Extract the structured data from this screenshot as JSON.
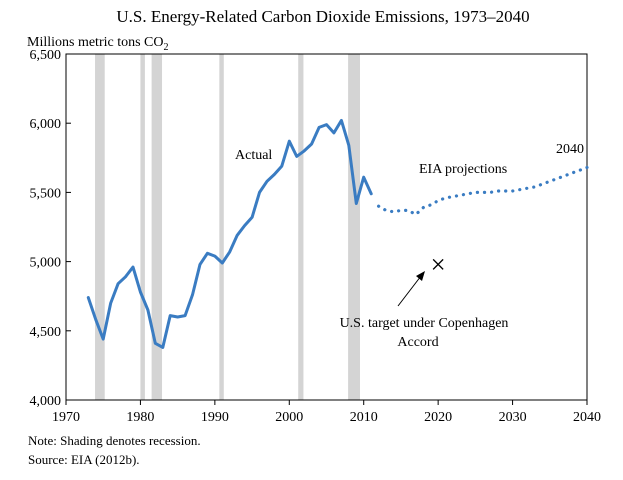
{
  "chart_data": {
    "type": "line",
    "title": "U.S. Energy-Related Carbon Dioxide Emissions, 1973–2040",
    "ylabel": "Millions metric tons CO",
    "ylabel_subscript": "2",
    "xlim": [
      1970,
      2040
    ],
    "ylim": [
      4000,
      6500
    ],
    "x_ticks": [
      1970,
      1980,
      1990,
      2000,
      2010,
      2020,
      2030,
      2040
    ],
    "y_ticks": [
      4000,
      4500,
      5000,
      5500,
      6000,
      6500
    ],
    "x_tick_labels": [
      "1970",
      "1980",
      "1990",
      "2000",
      "2010",
      "2020",
      "2030",
      "2040"
    ],
    "y_tick_labels": [
      "4,000",
      "4,500",
      "5,000",
      "5,500",
      "6,000",
      "6,500"
    ],
    "grid": false,
    "line_color": "#3a7cc2",
    "shade_color": "#d4d4d4",
    "recessions": [
      [
        1973.9,
        1975.2
      ],
      [
        1980.0,
        1980.6
      ],
      [
        1981.5,
        1982.9
      ],
      [
        1990.6,
        1991.2
      ],
      [
        2001.2,
        2001.9
      ],
      [
        2007.9,
        2009.5
      ]
    ],
    "series": [
      {
        "name": "Actual",
        "style": "solid",
        "x": [
          1973,
          1974,
          1975,
          1976,
          1977,
          1978,
          1979,
          1980,
          1981,
          1982,
          1983,
          1984,
          1985,
          1986,
          1987,
          1988,
          1989,
          1990,
          1991,
          1992,
          1993,
          1994,
          1995,
          1996,
          1997,
          1998,
          1999,
          2000,
          2001,
          2002,
          2003,
          2004,
          2005,
          2006,
          2007,
          2008,
          2009,
          2010,
          2011
        ],
        "y": [
          4740,
          4580,
          4440,
          4700,
          4840,
          4890,
          4960,
          4780,
          4650,
          4410,
          4380,
          4610,
          4600,
          4610,
          4760,
          4980,
          5060,
          5040,
          4990,
          5070,
          5190,
          5260,
          5320,
          5500,
          5580,
          5630,
          5690,
          5870,
          5760,
          5800,
          5850,
          5970,
          5990,
          5930,
          6020,
          5840,
          5420,
          5610,
          5490
        ]
      },
      {
        "name": "EIA projections",
        "style": "dotted",
        "x": [
          2012,
          2013,
          2014,
          2015,
          2016,
          2017,
          2018,
          2019,
          2020,
          2021,
          2022,
          2023,
          2024,
          2025,
          2026,
          2027,
          2028,
          2029,
          2030,
          2031,
          2032,
          2033,
          2034,
          2035,
          2036,
          2037,
          2038,
          2039,
          2040
        ],
        "y": [
          5400,
          5370,
          5360,
          5370,
          5370,
          5340,
          5390,
          5410,
          5440,
          5460,
          5470,
          5480,
          5490,
          5500,
          5500,
          5500,
          5510,
          5510,
          5510,
          5520,
          5530,
          5540,
          5560,
          5580,
          5600,
          5620,
          5640,
          5660,
          5680
        ]
      }
    ],
    "target": {
      "label": "U.S. target under Copenhagen Accord",
      "x": 2020,
      "y": 4980
    },
    "annotations": {
      "actual": "Actual",
      "projections": "EIA projections",
      "end_year": "2040",
      "target_line1": "U.S. target under Copenhagen",
      "target_line2": "Accord"
    }
  },
  "notes": {
    "shading": "Note: Shading denotes recession.",
    "source": "Source: EIA (2012b)."
  }
}
